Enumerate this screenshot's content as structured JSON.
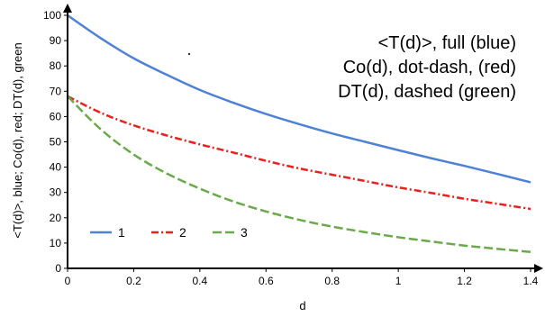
{
  "chart_data": {
    "type": "line",
    "xlabel": "d",
    "ylabel": "<T(d)>, blue; Co(d), red; DT(d), green",
    "xlim": [
      0,
      1.4
    ],
    "ylim": [
      0,
      100
    ],
    "xticks": [
      "0",
      "0.2",
      "0.4",
      "0.6",
      "0.8",
      "1",
      "1.2",
      "1.4"
    ],
    "yticks": [
      "0",
      "10",
      "20",
      "30",
      "40",
      "50",
      "60",
      "70",
      "80",
      "90",
      "100"
    ],
    "annotations": [
      "<T(d)>, full (blue)",
      "Co(d), dot-dash, (red)",
      "DT(d), dashed (green)"
    ],
    "legend_position": "bottom-left",
    "grid": false,
    "series": [
      {
        "name": "1",
        "color": "#4f81d6",
        "dash": "solid",
        "x": [
          0,
          0.1,
          0.2,
          0.3,
          0.4,
          0.5,
          0.6,
          0.7,
          0.8,
          0.9,
          1.0,
          1.1,
          1.2,
          1.3,
          1.4
        ],
        "y": [
          100,
          91,
          83,
          76.5,
          70.5,
          65.5,
          61,
          57,
          53.3,
          50,
          46.7,
          43.5,
          40.5,
          37.3,
          34
        ]
      },
      {
        "name": "2",
        "color": "#e8221e",
        "dash": "dashdot",
        "x": [
          0,
          0.1,
          0.2,
          0.3,
          0.4,
          0.5,
          0.6,
          0.7,
          0.8,
          0.9,
          1.0,
          1.1,
          1.2,
          1.3,
          1.4
        ],
        "y": [
          68,
          61.5,
          56.5,
          52.5,
          49,
          45.8,
          42.5,
          39.5,
          37,
          34.5,
          32,
          29.8,
          27.5,
          25.5,
          23.5
        ]
      },
      {
        "name": "3",
        "color": "#6aaa4a",
        "dash": "dashed",
        "x": [
          0,
          0.1,
          0.2,
          0.3,
          0.4,
          0.5,
          0.6,
          0.7,
          0.8,
          0.9,
          1.0,
          1.1,
          1.2,
          1.3,
          1.4
        ],
        "y": [
          68,
          55,
          45,
          37.5,
          31.5,
          26.5,
          22.5,
          19.2,
          16.5,
          14.3,
          12.3,
          10.6,
          9.0,
          7.7,
          6.5
        ]
      }
    ]
  }
}
